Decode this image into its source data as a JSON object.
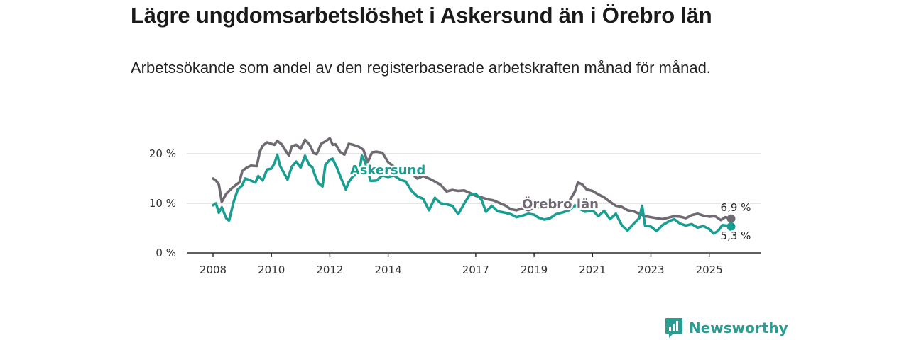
{
  "title": "Lägre ungdomsarbetslöshet i Askersund än i Örebro län",
  "subtitle": "Arbetssökande som andel av den registerbaserade arbetskraften månad för månad.",
  "brand": "Newsworthy",
  "chart_data": {
    "type": "line",
    "ylim": [
      0,
      20
    ],
    "xlim": [
      2008,
      2025.75
    ],
    "y_ticks": [
      {
        "value": 0,
        "label": "0 %"
      },
      {
        "value": 10,
        "label": "10 %"
      },
      {
        "value": 20,
        "label": "20 %"
      }
    ],
    "x_ticks": [
      {
        "value": 2008,
        "label": "2008"
      },
      {
        "value": 2010,
        "label": "2010"
      },
      {
        "value": 2012,
        "label": "2012"
      },
      {
        "value": 2014,
        "label": "2014"
      },
      {
        "value": 2017,
        "label": "2017"
      },
      {
        "value": 2019,
        "label": "2019"
      },
      {
        "value": 2021,
        "label": "2021"
      },
      {
        "value": 2023,
        "label": "2023"
      },
      {
        "value": 2025,
        "label": "2025"
      }
    ],
    "grid": true,
    "series": [
      {
        "name": "Örebro län",
        "color": "#6f6a72",
        "end_label": "6,9 %",
        "end_value": 6.9,
        "points": [
          [
            2008.0,
            15.0
          ],
          [
            2008.1,
            14.6
          ],
          [
            2008.2,
            13.8
          ],
          [
            2008.3,
            10.3
          ],
          [
            2008.45,
            11.9
          ],
          [
            2008.6,
            12.8
          ],
          [
            2008.8,
            13.8
          ],
          [
            2008.9,
            14.2
          ],
          [
            2009.0,
            16.5
          ],
          [
            2009.15,
            17.2
          ],
          [
            2009.3,
            17.6
          ],
          [
            2009.5,
            17.5
          ],
          [
            2009.6,
            20.4
          ],
          [
            2009.7,
            21.6
          ],
          [
            2009.85,
            22.3
          ],
          [
            2010.0,
            22.0
          ],
          [
            2010.1,
            21.8
          ],
          [
            2010.2,
            22.6
          ],
          [
            2010.35,
            21.9
          ],
          [
            2010.5,
            20.5
          ],
          [
            2010.6,
            19.6
          ],
          [
            2010.7,
            21.5
          ],
          [
            2010.85,
            21.8
          ],
          [
            2011.0,
            21.0
          ],
          [
            2011.15,
            22.8
          ],
          [
            2011.3,
            21.9
          ],
          [
            2011.45,
            20.1
          ],
          [
            2011.55,
            19.9
          ],
          [
            2011.7,
            22.0
          ],
          [
            2011.85,
            22.5
          ],
          [
            2012.0,
            23.1
          ],
          [
            2012.1,
            21.8
          ],
          [
            2012.2,
            21.9
          ],
          [
            2012.35,
            20.4
          ],
          [
            2012.5,
            19.8
          ],
          [
            2012.65,
            22.0
          ],
          [
            2012.8,
            21.8
          ],
          [
            2013.0,
            21.4
          ],
          [
            2013.15,
            20.8
          ],
          [
            2013.3,
            18.3
          ],
          [
            2013.45,
            20.3
          ],
          [
            2013.6,
            20.4
          ],
          [
            2013.8,
            20.2
          ],
          [
            2014.0,
            18.3
          ],
          [
            2014.2,
            17.4
          ],
          [
            2014.4,
            16.5
          ],
          [
            2014.6,
            16.5
          ],
          [
            2014.8,
            16.0
          ],
          [
            2015.0,
            15.0
          ],
          [
            2015.2,
            15.5
          ],
          [
            2015.4,
            15.0
          ],
          [
            2015.6,
            14.4
          ],
          [
            2015.8,
            13.7
          ],
          [
            2016.0,
            12.4
          ],
          [
            2016.2,
            12.7
          ],
          [
            2016.4,
            12.5
          ],
          [
            2016.6,
            12.6
          ],
          [
            2016.8,
            12.1
          ],
          [
            2017.0,
            11.5
          ],
          [
            2017.2,
            11.2
          ],
          [
            2017.4,
            10.8
          ],
          [
            2017.6,
            10.6
          ],
          [
            2017.8,
            10.1
          ],
          [
            2018.0,
            9.6
          ],
          [
            2018.2,
            8.8
          ],
          [
            2018.4,
            8.6
          ],
          [
            2018.6,
            9.0
          ],
          [
            2018.8,
            8.6
          ],
          [
            2019.0,
            9.0
          ],
          [
            2019.2,
            9.3
          ],
          [
            2019.4,
            9.2
          ],
          [
            2019.6,
            9.1
          ],
          [
            2019.8,
            9.5
          ],
          [
            2020.0,
            9.7
          ],
          [
            2020.2,
            10.4
          ],
          [
            2020.4,
            12.4
          ],
          [
            2020.5,
            14.2
          ],
          [
            2020.65,
            13.8
          ],
          [
            2020.8,
            12.8
          ],
          [
            2021.0,
            12.5
          ],
          [
            2021.2,
            11.8
          ],
          [
            2021.4,
            11.2
          ],
          [
            2021.6,
            10.3
          ],
          [
            2021.8,
            9.5
          ],
          [
            2022.0,
            9.3
          ],
          [
            2022.2,
            8.6
          ],
          [
            2022.4,
            8.4
          ],
          [
            2022.6,
            7.9
          ],
          [
            2022.8,
            7.4
          ],
          [
            2023.0,
            7.2
          ],
          [
            2023.2,
            7.0
          ],
          [
            2023.4,
            6.8
          ],
          [
            2023.6,
            7.1
          ],
          [
            2023.8,
            7.4
          ],
          [
            2024.0,
            7.3
          ],
          [
            2024.2,
            7.0
          ],
          [
            2024.4,
            7.6
          ],
          [
            2024.6,
            7.9
          ],
          [
            2024.8,
            7.5
          ],
          [
            2025.0,
            7.3
          ],
          [
            2025.2,
            7.4
          ],
          [
            2025.4,
            6.6
          ],
          [
            2025.55,
            7.2
          ],
          [
            2025.75,
            6.9
          ]
        ]
      },
      {
        "name": "Askersund",
        "color": "#1a9e92",
        "end_label": "5,3 %",
        "end_value": 5.3,
        "points": [
          [
            2008.0,
            9.6
          ],
          [
            2008.1,
            10.0
          ],
          [
            2008.2,
            8.1
          ],
          [
            2008.3,
            9.2
          ],
          [
            2008.45,
            7.0
          ],
          [
            2008.55,
            6.5
          ],
          [
            2008.7,
            10.2
          ],
          [
            2008.85,
            12.8
          ],
          [
            2009.0,
            13.6
          ],
          [
            2009.1,
            15.0
          ],
          [
            2009.25,
            14.7
          ],
          [
            2009.45,
            14.2
          ],
          [
            2009.55,
            15.5
          ],
          [
            2009.7,
            14.6
          ],
          [
            2009.85,
            16.8
          ],
          [
            2010.0,
            17.0
          ],
          [
            2010.1,
            18.0
          ],
          [
            2010.2,
            19.8
          ],
          [
            2010.3,
            17.5
          ],
          [
            2010.45,
            15.9
          ],
          [
            2010.55,
            14.8
          ],
          [
            2010.7,
            17.4
          ],
          [
            2010.85,
            18.4
          ],
          [
            2011.0,
            17.2
          ],
          [
            2011.15,
            19.6
          ],
          [
            2011.3,
            17.7
          ],
          [
            2011.4,
            17.3
          ],
          [
            2011.5,
            15.5
          ],
          [
            2011.6,
            14.1
          ],
          [
            2011.75,
            13.4
          ],
          [
            2011.85,
            17.8
          ],
          [
            2012.0,
            18.8
          ],
          [
            2012.1,
            19.0
          ],
          [
            2012.25,
            17.1
          ],
          [
            2012.4,
            14.9
          ],
          [
            2012.55,
            12.8
          ],
          [
            2012.65,
            14.3
          ],
          [
            2012.8,
            15.5
          ],
          [
            2013.0,
            16.0
          ],
          [
            2013.1,
            19.6
          ],
          [
            2013.2,
            18.5
          ],
          [
            2013.4,
            14.5
          ],
          [
            2013.6,
            14.6
          ],
          [
            2013.8,
            15.6
          ],
          [
            2014.0,
            15.3
          ],
          [
            2014.2,
            15.6
          ],
          [
            2014.4,
            14.8
          ],
          [
            2014.6,
            14.4
          ],
          [
            2014.8,
            12.5
          ],
          [
            2015.0,
            11.4
          ],
          [
            2015.2,
            10.9
          ],
          [
            2015.4,
            8.6
          ],
          [
            2015.6,
            11.1
          ],
          [
            2015.8,
            10.0
          ],
          [
            2016.0,
            9.8
          ],
          [
            2016.2,
            9.5
          ],
          [
            2016.4,
            7.8
          ],
          [
            2016.6,
            9.9
          ],
          [
            2016.8,
            11.8
          ],
          [
            2017.0,
            11.9
          ],
          [
            2017.2,
            10.7
          ],
          [
            2017.35,
            8.3
          ],
          [
            2017.55,
            9.5
          ],
          [
            2017.75,
            8.4
          ],
          [
            2018.0,
            8.1
          ],
          [
            2018.2,
            7.8
          ],
          [
            2018.4,
            7.2
          ],
          [
            2018.6,
            7.5
          ],
          [
            2018.8,
            7.9
          ],
          [
            2019.0,
            7.7
          ],
          [
            2019.15,
            7.1
          ],
          [
            2019.35,
            6.7
          ],
          [
            2019.55,
            7.0
          ],
          [
            2019.75,
            7.8
          ],
          [
            2019.95,
            8.1
          ],
          [
            2020.2,
            8.6
          ],
          [
            2020.4,
            9.6
          ],
          [
            2020.55,
            8.9
          ],
          [
            2020.75,
            8.3
          ],
          [
            2021.0,
            8.6
          ],
          [
            2021.2,
            7.4
          ],
          [
            2021.4,
            8.5
          ],
          [
            2021.6,
            6.8
          ],
          [
            2021.8,
            7.9
          ],
          [
            2022.0,
            5.6
          ],
          [
            2022.2,
            4.5
          ],
          [
            2022.4,
            5.8
          ],
          [
            2022.6,
            7.0
          ],
          [
            2022.7,
            9.5
          ],
          [
            2022.8,
            5.5
          ],
          [
            2023.0,
            5.3
          ],
          [
            2023.2,
            4.4
          ],
          [
            2023.4,
            5.6
          ],
          [
            2023.6,
            6.3
          ],
          [
            2023.8,
            6.8
          ],
          [
            2024.0,
            5.9
          ],
          [
            2024.2,
            5.5
          ],
          [
            2024.4,
            5.8
          ],
          [
            2024.6,
            5.1
          ],
          [
            2024.8,
            5.4
          ],
          [
            2025.0,
            4.8
          ],
          [
            2025.15,
            3.9
          ],
          [
            2025.3,
            4.4
          ],
          [
            2025.45,
            5.6
          ],
          [
            2025.6,
            5.5
          ],
          [
            2025.75,
            5.3
          ]
        ]
      }
    ]
  }
}
